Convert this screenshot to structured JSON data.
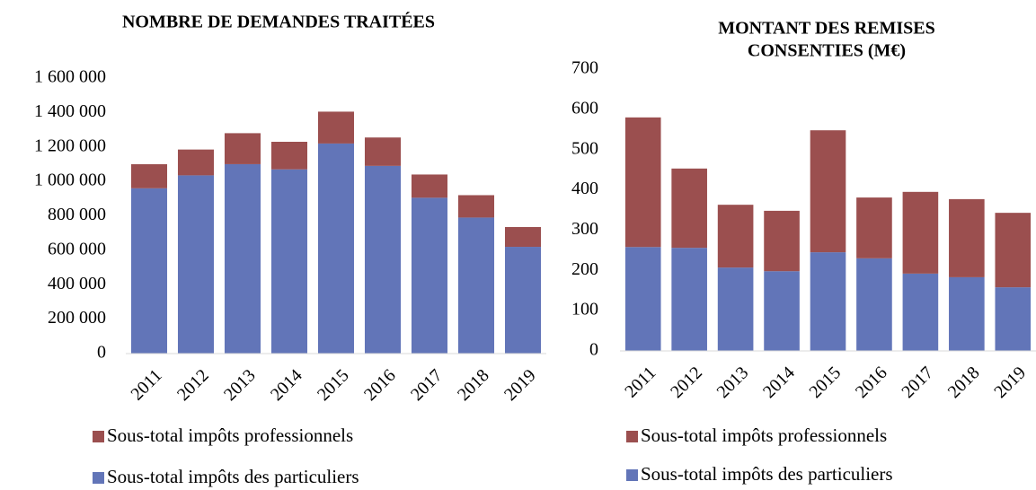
{
  "chart_data": [
    {
      "type": "stacked_bar",
      "title": [
        "NOMBRE DE DEMANDES TRAITÉES"
      ],
      "categories": [
        "2011",
        "2012",
        "2013",
        "2014",
        "2015",
        "2016",
        "2017",
        "2018",
        "2019"
      ],
      "series": [
        {
          "name": "Sous-total impôts professionnels",
          "color": "#9b4f4f",
          "values": [
            140000,
            150000,
            180000,
            160000,
            185000,
            165000,
            135000,
            130000,
            115000
          ]
        },
        {
          "name": "Sous-total impôts des particuliers",
          "color": "#6275b8",
          "values": [
            960000,
            1035000,
            1100000,
            1070000,
            1220000,
            1090000,
            905000,
            790000,
            620000
          ]
        }
      ],
      "ylim": [
        0,
        1600000
      ],
      "yticks": [
        0,
        {
          "value": 200000,
          "label": "200 000"
        },
        {
          "value": 400000,
          "label": "400 000"
        },
        {
          "value": 600000,
          "label": "600 000"
        },
        {
          "value": 800000,
          "label": "800 000"
        },
        {
          "value": 1000000,
          "label": "1 000 000"
        },
        {
          "value": 1200000,
          "label": "1 200 000"
        },
        {
          "value": 1400000,
          "label": "1 400 000"
        },
        {
          "value": 1600000,
          "label": "1 600 000"
        }
      ],
      "grid": false
    },
    {
      "type": "stacked_bar",
      "title": [
        "MONTANT DES REMISES",
        "CONSENTIES (M€)"
      ],
      "categories": [
        "2011",
        "2012",
        "2013",
        "2014",
        "2015",
        "2016",
        "2017",
        "2018",
        "2019"
      ],
      "series": [
        {
          "name": "Sous-total impôts professionnels",
          "color": "#9b4f4f",
          "values": [
            322,
            197,
            156,
            150,
            303,
            151,
            203,
            194,
            185
          ]
        },
        {
          "name": "Sous-total impôts des particuliers",
          "color": "#6275b8",
          "values": [
            258,
            256,
            207,
            198,
            245,
            230,
            192,
            183,
            158
          ]
        }
      ],
      "ylim": [
        0,
        700
      ],
      "yticks": [
        0,
        100,
        200,
        300,
        400,
        500,
        600,
        700
      ],
      "grid": false
    }
  ]
}
